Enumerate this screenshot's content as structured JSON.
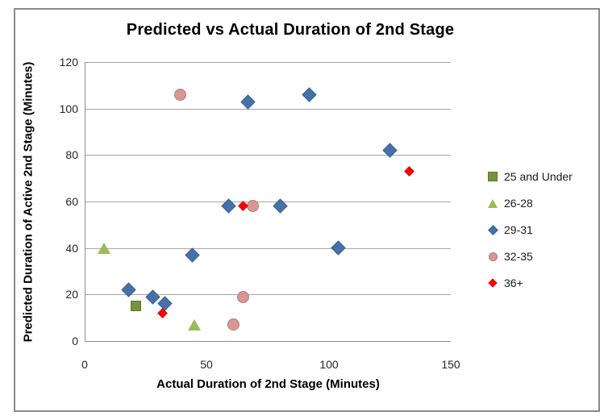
{
  "chart_data": {
    "type": "scatter",
    "title": "Predicted vs Actual Duration of 2nd Stage",
    "xlabel": "Actual Duration of 2nd Stage (Minutes)",
    "ylabel": "Predicted Duration of Active 2nd Stage (Minutes)",
    "xlim": [
      0,
      150
    ],
    "ylim": [
      0,
      120
    ],
    "x_ticks": [
      0,
      50,
      100,
      150
    ],
    "y_ticks": [
      0,
      20,
      40,
      60,
      80,
      100,
      120
    ],
    "grid": "horizontal",
    "legend_position": "right",
    "colors": {
      "grid": "#a6a6a6",
      "axis": "#8f8f8f",
      "frame_border": "#8a8a8a"
    },
    "series": [
      {
        "name": "25 and Under",
        "marker": "square",
        "color": "#76923C",
        "points": [
          [
            21,
            15
          ]
        ]
      },
      {
        "name": "26-28",
        "marker": "triangle",
        "color": "#9BBB59",
        "points": [
          [
            8,
            40
          ],
          [
            45,
            7
          ]
        ]
      },
      {
        "name": "29-31",
        "marker": "diamond",
        "color": "#4472A8",
        "points": [
          [
            18,
            22
          ],
          [
            28,
            19
          ],
          [
            33,
            16
          ],
          [
            44,
            37
          ],
          [
            59,
            58
          ],
          [
            67,
            103
          ],
          [
            80,
            58
          ],
          [
            92,
            106
          ],
          [
            104,
            40
          ],
          [
            125,
            82
          ]
        ]
      },
      {
        "name": "32-35",
        "marker": "circle",
        "color": "#D99694",
        "points": [
          [
            39,
            106
          ],
          [
            61,
            7
          ],
          [
            65,
            19
          ],
          [
            69,
            58
          ]
        ]
      },
      {
        "name": "36+",
        "marker": "diamond-small",
        "color": "#FF0000",
        "points": [
          [
            32,
            12
          ],
          [
            65,
            58
          ],
          [
            133,
            73
          ]
        ]
      }
    ]
  }
}
